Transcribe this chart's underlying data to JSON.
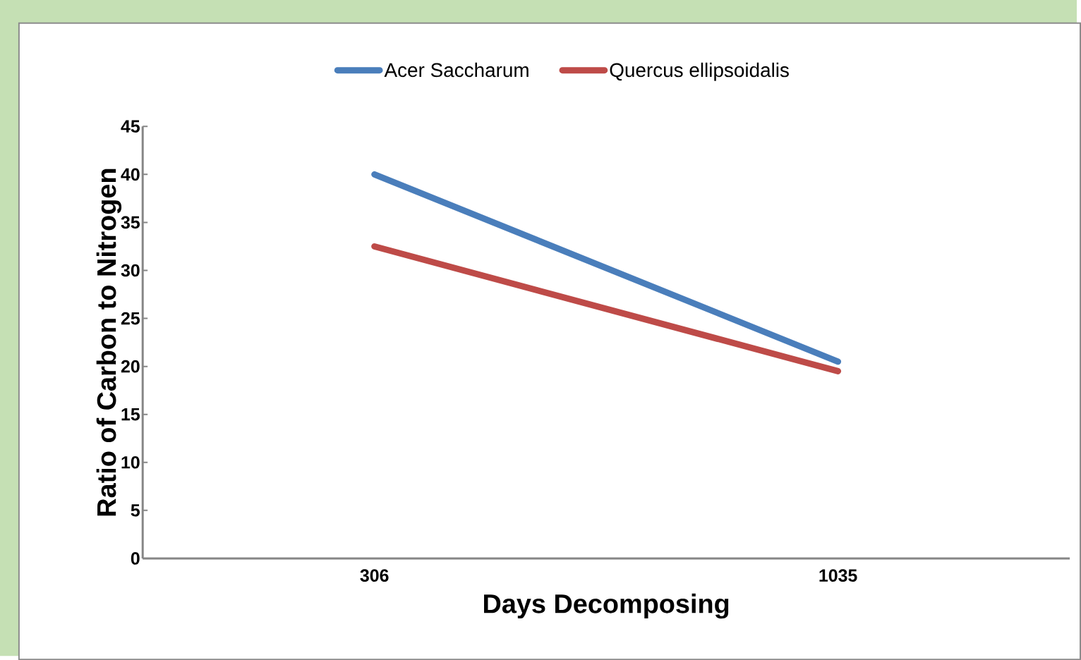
{
  "chart_data": {
    "type": "line",
    "xlabel": "Days Decomposing",
    "ylabel": "Ratio of Carbon to Nitrogen",
    "categories": [
      "306",
      "1035"
    ],
    "series": [
      {
        "name": "Acer Saccharum",
        "color": "#4a7ebb",
        "values": [
          40,
          20.5
        ]
      },
      {
        "name": "Quercus ellipsoidalis",
        "color": "#be4b48",
        "values": [
          32.5,
          19.5
        ]
      }
    ],
    "ylim": [
      0,
      45
    ],
    "yticks": [
      0,
      5,
      10,
      15,
      20,
      25,
      30,
      35,
      40,
      45
    ],
    "legend": "top"
  }
}
